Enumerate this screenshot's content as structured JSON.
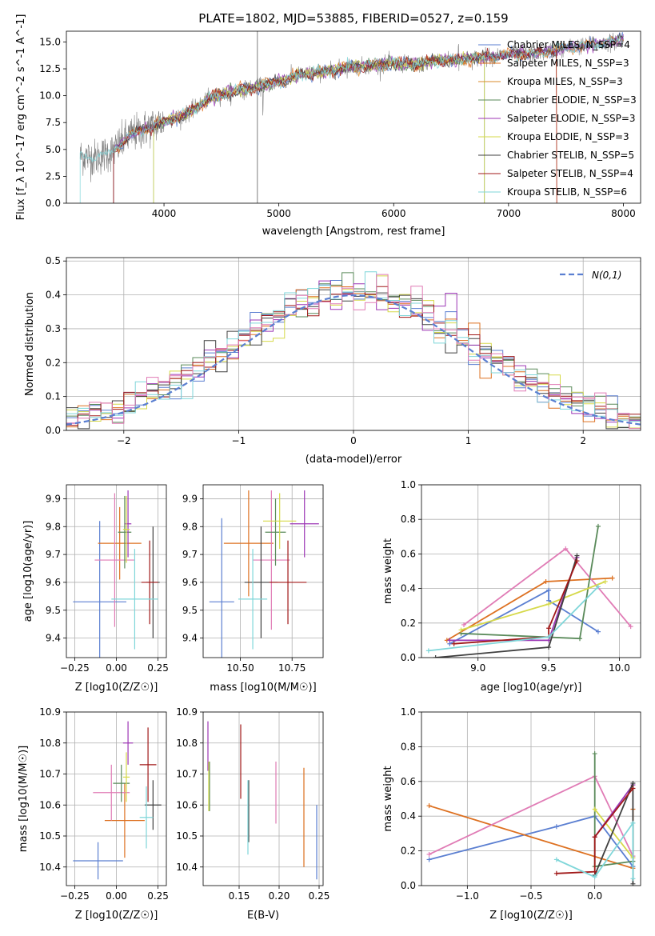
{
  "title": "PLATE=1802, MJD=53885, FIBERID=0527, z=0.159",
  "colors": {
    "chabrier_miles": "#5b7fd1",
    "salpeter_miles": "#dd7020",
    "kroupa_miles": "#d98b2b",
    "chabrier_elodie": "#5a8a5a",
    "salpeter_elodie": "#9c36b5",
    "kroupa_elodie": "#d6d94a",
    "chabrier_stelib": "#404040",
    "salpeter_stelib": "#a01818",
    "kroupa_stelib": "#7fd6d9",
    "pink": "#e07bb5",
    "data": "#808080"
  },
  "chart_data": [
    {
      "id": "spectrum",
      "type": "line",
      "title": "PLATE=1802, MJD=53885, FIBERID=0527, z=0.159",
      "xlabel": "wavelength [Angstrom, rest frame]",
      "ylabel": "Flux [f_λ 10^-17 erg cm^-2 s^-1 A^-1]",
      "xlim": [
        3150,
        8150
      ],
      "ylim": [
        0,
        16
      ],
      "xticks": [
        4000,
        5000,
        6000,
        7000,
        8000
      ],
      "yticks": [
        "0.0",
        "2.5",
        "5.0",
        "7.5",
        "10.0",
        "12.5",
        "15.0"
      ],
      "legend": [
        {
          "label": "Chabrier MILES, N_SSP=4",
          "color": "#5b7fd1"
        },
        {
          "label": "Salpeter MILES, N_SSP=3",
          "color": "#dd7020"
        },
        {
          "label": "Kroupa MILES, N_SSP=3",
          "color": "#d98b2b"
        },
        {
          "label": "Chabrier ELODIE, N_SSP=3",
          "color": "#5a8a5a"
        },
        {
          "label": "Salpeter ELODIE, N_SSP=3",
          "color": "#9c36b5"
        },
        {
          "label": "Kroupa ELODIE, N_SSP=3",
          "color": "#d6d94a"
        },
        {
          "label": "Chabrier STELIB, N_SSP=5",
          "color": "#404040"
        },
        {
          "label": "Salpeter STELIB, N_SSP=4",
          "color": "#a01818"
        },
        {
          "label": "Kroupa STELIB, N_SSP=6",
          "color": "#7fd6d9"
        }
      ],
      "legend_placement": "right",
      "continuum": [
        [
          3270,
          4.4
        ],
        [
          3400,
          4.2
        ],
        [
          3550,
          4.8
        ],
        [
          3700,
          6.3
        ],
        [
          3900,
          7.2
        ],
        [
          4000,
          7.6
        ],
        [
          4200,
          8.3
        ],
        [
          4400,
          9.8
        ],
        [
          4600,
          10.4
        ],
        [
          4800,
          10.8
        ],
        [
          5000,
          11.3
        ],
        [
          5200,
          12.0
        ],
        [
          5400,
          12.2
        ],
        [
          5600,
          12.7
        ],
        [
          5800,
          12.8
        ],
        [
          6000,
          13.0
        ],
        [
          6200,
          12.9
        ],
        [
          6400,
          13.3
        ],
        [
          6600,
          13.4
        ],
        [
          6800,
          13.6
        ],
        [
          7000,
          13.8
        ],
        [
          7200,
          13.9
        ],
        [
          7400,
          14.2
        ],
        [
          7600,
          14.6
        ],
        [
          7800,
          14.8
        ],
        [
          8000,
          15.2
        ]
      ],
      "grid": false
    },
    {
      "id": "residuals",
      "type": "line",
      "xlabel": "(data-model)/error",
      "ylabel": "Normed distribution",
      "xlim": [
        -2.5,
        2.5
      ],
      "ylim": [
        0,
        0.51
      ],
      "xticks": [
        "−2",
        "−1",
        "0",
        "1",
        "2"
      ],
      "yticks": [
        "0.0",
        "0.1",
        "0.2",
        "0.3",
        "0.4",
        "0.5"
      ],
      "legend": [
        {
          "label": "N(0,1)",
          "color": "#5b7fd1"
        }
      ],
      "legend_placement": "top-right",
      "bin_width": 0.1,
      "grid": true
    },
    {
      "id": "age_vs_Z",
      "type": "scatter",
      "xlabel": "Z [log10(Z/Z☉)]",
      "ylabel": "age [log10(age/yr)]",
      "xlim": [
        -0.3,
        0.3
      ],
      "ylim": [
        9.33,
        9.95
      ],
      "xticks": [
        "−0.25",
        "0.00",
        "0.25"
      ],
      "yticks": [
        "9.4",
        "9.5",
        "9.6",
        "9.7",
        "9.8",
        "9.9"
      ],
      "points": [
        {
          "x": -0.1,
          "y": 9.53,
          "xerr": 0.16,
          "yerr": 0.29,
          "color": "#5b7fd1"
        },
        {
          "x": 0.02,
          "y": 9.74,
          "xerr": 0.13,
          "yerr": 0.13,
          "color": "#dd7020"
        },
        {
          "x": -0.01,
          "y": 9.68,
          "xerr": 0.12,
          "yerr": 0.24,
          "color": "#e07bb5"
        },
        {
          "x": 0.05,
          "y": 9.78,
          "xerr": 0.04,
          "yerr": 0.13,
          "color": "#5a8a5a"
        },
        {
          "x": 0.07,
          "y": 9.81,
          "xerr": 0.02,
          "yerr": 0.12,
          "color": "#9c36b5"
        },
        {
          "x": 0.06,
          "y": 9.79,
          "xerr": 0.02,
          "yerr": 0.12,
          "color": "#d6d94a"
        },
        {
          "x": 0.22,
          "y": 9.6,
          "xerr": 0.04,
          "yerr": 0.2,
          "color": "#404040"
        },
        {
          "x": 0.2,
          "y": 9.6,
          "xerr": 0.05,
          "yerr": 0.15,
          "color": "#a01818"
        },
        {
          "x": 0.11,
          "y": 9.54,
          "xerr": 0.14,
          "yerr": 0.18,
          "color": "#7fd6d9"
        }
      ],
      "grid": true
    },
    {
      "id": "age_vs_mass",
      "type": "scatter",
      "xlabel": "mass [log10(M/M☉)]",
      "ylabel": "",
      "xlim": [
        10.32,
        10.9
      ],
      "ylim": [
        9.33,
        9.95
      ],
      "xticks": [
        "10.50",
        "10.75"
      ],
      "yticks": [
        "9.4",
        "9.5",
        "9.6",
        "9.7",
        "9.8",
        "9.9"
      ],
      "points": [
        {
          "x": 10.41,
          "y": 9.53,
          "xerr": 0.06,
          "yerr": 0.3,
          "color": "#5b7fd1"
        },
        {
          "x": 10.54,
          "y": 9.74,
          "xerr": 0.12,
          "yerr": 0.19,
          "color": "#dd7020"
        },
        {
          "x": 10.65,
          "y": 9.68,
          "xerr": 0.09,
          "yerr": 0.25,
          "color": "#e07bb5"
        },
        {
          "x": 10.67,
          "y": 9.78,
          "xerr": 0.05,
          "yerr": 0.12,
          "color": "#5a8a5a"
        },
        {
          "x": 10.81,
          "y": 9.81,
          "xerr": 0.07,
          "yerr": 0.12,
          "color": "#9c36b5"
        },
        {
          "x": 10.69,
          "y": 9.82,
          "xerr": 0.08,
          "yerr": 0.1,
          "color": "#d6d94a"
        },
        {
          "x": 10.6,
          "y": 9.6,
          "xerr": 0.08,
          "yerr": 0.2,
          "color": "#404040"
        },
        {
          "x": 10.73,
          "y": 9.6,
          "xerr": 0.09,
          "yerr": 0.15,
          "color": "#a01818"
        },
        {
          "x": 10.56,
          "y": 9.54,
          "xerr": 0.07,
          "yerr": 0.18,
          "color": "#7fd6d9"
        }
      ],
      "grid": true
    },
    {
      "id": "weight_vs_age",
      "type": "line",
      "xlabel": "age [log10(age/yr)]",
      "ylabel": "mass weight",
      "xlim": [
        8.6,
        10.15
      ],
      "ylim": [
        0,
        1
      ],
      "xticks": [
        "9.0",
        "9.5",
        "10.0"
      ],
      "yticks": [
        "0.0",
        "0.2",
        "0.4",
        "0.6",
        "0.8",
        "1.0"
      ],
      "series": [
        {
          "color": "#5b7fd1",
          "points": [
            [
              8.8,
              0.08
            ],
            [
              9.5,
              0.39
            ],
            [
              9.5,
              0.33
            ],
            [
              9.85,
              0.15
            ]
          ]
        },
        {
          "color": "#dd7020",
          "points": [
            [
              8.78,
              0.1
            ],
            [
              9.48,
              0.44
            ],
            [
              9.95,
              0.46
            ]
          ]
        },
        {
          "color": "#e07bb5",
          "points": [
            [
              8.9,
              0.19
            ],
            [
              9.62,
              0.63
            ],
            [
              10.08,
              0.18
            ]
          ]
        },
        {
          "color": "#5a8a5a",
          "points": [
            [
              8.88,
              0.14
            ],
            [
              9.72,
              0.11
            ],
            [
              9.85,
              0.76
            ]
          ]
        },
        {
          "color": "#d6d94a",
          "points": [
            [
              8.88,
              0.16
            ],
            [
              9.5,
              0.31
            ],
            [
              9.9,
              0.44
            ]
          ]
        },
        {
          "color": "#9c36b5",
          "points": [
            [
              8.8,
              0.1
            ],
            [
              9.5,
              0.1
            ],
            [
              9.7,
              0.58
            ]
          ]
        },
        {
          "color": "#404040",
          "points": [
            [
              8.7,
              0.0
            ],
            [
              9.5,
              0.06
            ],
            [
              9.7,
              0.59
            ]
          ]
        },
        {
          "color": "#a01818",
          "points": [
            [
              8.83,
              0.08
            ],
            [
              9.5,
              0.12
            ],
            [
              9.5,
              0.17
            ],
            [
              9.7,
              0.56
            ]
          ]
        },
        {
          "color": "#7fd6d9",
          "points": [
            [
              8.65,
              0.04
            ],
            [
              9.5,
              0.12
            ],
            [
              9.85,
              0.41
            ]
          ]
        }
      ],
      "grid": true
    },
    {
      "id": "mass_vs_Z",
      "type": "scatter",
      "xlabel": "Z [log10(Z/Z☉)]",
      "ylabel": "mass [log10(M/M☉)]",
      "xlim": [
        -0.3,
        0.3
      ],
      "ylim": [
        10.34,
        10.9
      ],
      "xticks": [
        "−0.25",
        "0.00",
        "0.25"
      ],
      "yticks": [
        "10.4",
        "10.5",
        "10.6",
        "10.7",
        "10.8",
        "10.9"
      ],
      "points": [
        {
          "x": -0.11,
          "y": 10.42,
          "xerr": 0.15,
          "yerr": 0.06,
          "color": "#5b7fd1"
        },
        {
          "x": 0.05,
          "y": 10.55,
          "xerr": 0.12,
          "yerr": 0.12,
          "color": "#dd7020"
        },
        {
          "x": -0.03,
          "y": 10.64,
          "xerr": 0.11,
          "yerr": 0.09,
          "color": "#e07bb5"
        },
        {
          "x": 0.03,
          "y": 10.67,
          "xerr": 0.05,
          "yerr": 0.06,
          "color": "#5a8a5a"
        },
        {
          "x": 0.07,
          "y": 10.8,
          "xerr": 0.03,
          "yerr": 0.07,
          "color": "#9c36b5"
        },
        {
          "x": 0.06,
          "y": 10.69,
          "xerr": 0.02,
          "yerr": 0.08,
          "color": "#d6d94a"
        },
        {
          "x": 0.22,
          "y": 10.6,
          "xerr": 0.05,
          "yerr": 0.08,
          "color": "#404040"
        },
        {
          "x": 0.19,
          "y": 10.73,
          "xerr": 0.05,
          "yerr": 0.12,
          "color": "#a01818"
        },
        {
          "x": 0.18,
          "y": 10.56,
          "xerr": 0.04,
          "yerr": 0.1,
          "color": "#7fd6d9"
        }
      ],
      "grid": true
    },
    {
      "id": "mass_vs_ebv",
      "type": "scatter",
      "xlabel": "E(B-V)",
      "ylabel": "",
      "xlim": [
        0.105,
        0.255
      ],
      "ylim": [
        10.34,
        10.9
      ],
      "xticks": [
        "0.15",
        "0.20",
        "0.25"
      ],
      "yticks": [
        "10.4",
        "10.5",
        "10.6",
        "10.7",
        "10.8",
        "10.9"
      ],
      "points": [
        {
          "x": 0.247,
          "y": 10.48,
          "yerr": 0.12,
          "color": "#5b7fd1"
        },
        {
          "x": 0.231,
          "y": 10.56,
          "yerr": 0.16,
          "color": "#dd7020"
        },
        {
          "x": 0.196,
          "y": 10.64,
          "yerr": 0.1,
          "color": "#e07bb5"
        },
        {
          "x": 0.113,
          "y": 10.66,
          "yerr": 0.08,
          "color": "#5a8a5a"
        },
        {
          "x": 0.111,
          "y": 10.79,
          "yerr": 0.08,
          "color": "#9c36b5"
        },
        {
          "x": 0.112,
          "y": 10.66,
          "yerr": 0.08,
          "color": "#d6d94a"
        },
        {
          "x": 0.162,
          "y": 10.58,
          "yerr": 0.1,
          "color": "#404040"
        },
        {
          "x": 0.152,
          "y": 10.74,
          "yerr": 0.12,
          "color": "#a01818"
        },
        {
          "x": 0.161,
          "y": 10.56,
          "yerr": 0.12,
          "color": "#7fd6d9"
        }
      ],
      "grid": true
    },
    {
      "id": "weight_vs_Z",
      "type": "line",
      "xlabel": "Z [log10(Z/Z☉)]",
      "ylabel": "mass weight",
      "xlim": [
        -1.36,
        0.36
      ],
      "ylim": [
        0,
        1
      ],
      "xticks": [
        "−1.0",
        "−0.5",
        "0.0"
      ],
      "yticks": [
        "0.0",
        "0.2",
        "0.4",
        "0.6",
        "0.8",
        "1.0"
      ],
      "series": [
        {
          "color": "#5b7fd1",
          "points": [
            [
              -1.3,
              0.15
            ],
            [
              -0.3,
              0.34
            ],
            [
              0,
              0.4
            ],
            [
              0.3,
              0.11
            ]
          ]
        },
        {
          "color": "#dd7020",
          "points": [
            [
              -1.3,
              0.46
            ],
            [
              0.3,
              0.1
            ],
            [
              0.3,
              0.44
            ]
          ]
        },
        {
          "color": "#e07bb5",
          "points": [
            [
              -1.3,
              0.18
            ],
            [
              0,
              0.63
            ],
            [
              0.3,
              0.17
            ]
          ]
        },
        {
          "color": "#5a8a5a",
          "points": [
            [
              0,
              0.76
            ],
            [
              0,
              0.11
            ],
            [
              0.3,
              0.14
            ]
          ]
        },
        {
          "color": "#d6d94a",
          "points": [
            [
              0,
              0.44
            ],
            [
              0.3,
              0.16
            ]
          ]
        },
        {
          "color": "#9c36b5",
          "points": [
            [
              0,
              0.28
            ],
            [
              0.3,
              0.58
            ]
          ]
        },
        {
          "color": "#404040",
          "points": [
            [
              0,
              0.06
            ],
            [
              0.3,
              0.59
            ],
            [
              0.3,
              0.01
            ]
          ]
        },
        {
          "color": "#a01818",
          "points": [
            [
              -0.3,
              0.07
            ],
            [
              0,
              0.08
            ],
            [
              0,
              0.28
            ],
            [
              0.3,
              0.56
            ]
          ]
        },
        {
          "color": "#7fd6d9",
          "points": [
            [
              -0.3,
              0.15
            ],
            [
              0,
              0.05
            ],
            [
              0.3,
              0.36
            ],
            [
              0.3,
              0.04
            ]
          ]
        }
      ],
      "grid": true
    }
  ]
}
